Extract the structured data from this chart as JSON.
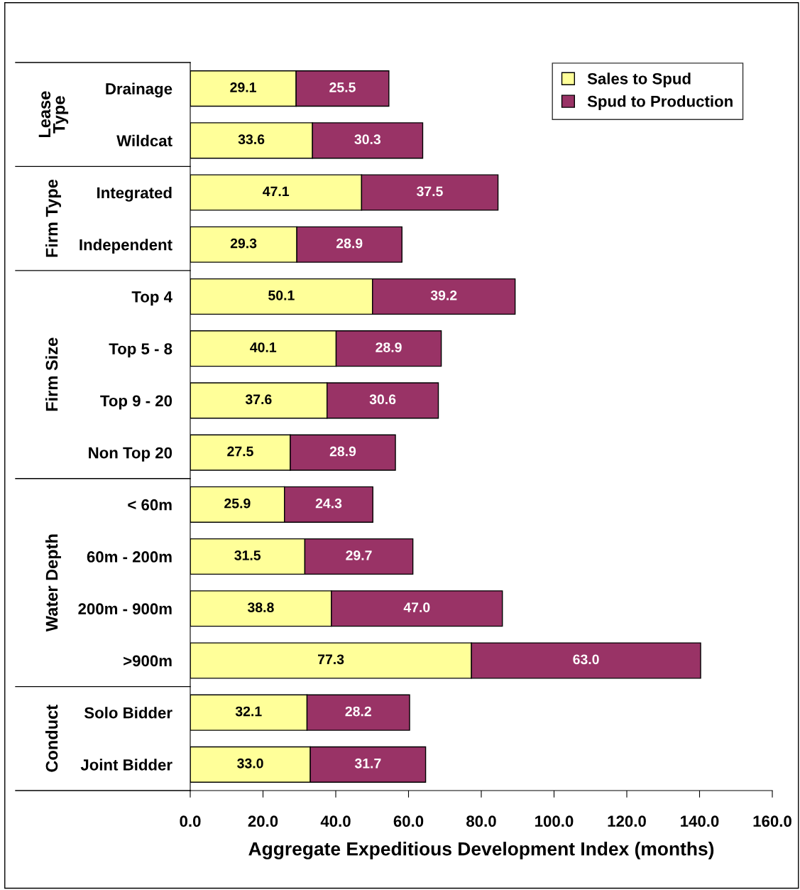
{
  "chart_data": {
    "type": "bar",
    "orientation": "horizontal",
    "stacked": true,
    "xlabel": "Aggregate Expeditious Development Index (months)",
    "categories": [
      "Drainage",
      "Wildcat",
      "Integrated",
      "Independent",
      "Top 4",
      "Top 5 - 8",
      "Top 9 - 20",
      "Non Top 20",
      "< 60m",
      "60m - 200m",
      "200m - 900m",
      ">900m",
      "Solo Bidder",
      "Joint Bidder"
    ],
    "series": [
      {
        "name": "Sales to Spud",
        "color": "#ffff99",
        "values": [
          29.1,
          33.6,
          47.1,
          29.3,
          50.1,
          40.1,
          37.6,
          27.5,
          25.9,
          31.5,
          38.8,
          77.3,
          32.1,
          33.0
        ],
        "value_labels": [
          "29.1",
          "33.6",
          "47.1",
          "29.3",
          "50.1",
          "40.1",
          "37.6",
          "27.5",
          "25.9",
          "31.5",
          "38.8",
          "77.3",
          "32.1",
          "33.0"
        ]
      },
      {
        "name": "Spud to Production",
        "color": "#993366",
        "values": [
          25.5,
          30.3,
          37.5,
          28.9,
          39.2,
          28.9,
          30.6,
          28.9,
          24.3,
          29.7,
          47.0,
          63.0,
          28.2,
          31.7
        ],
        "value_labels": [
          "25.5",
          "30.3",
          "37.5",
          "28.9",
          "39.2",
          "28.9",
          "30.6",
          "28.9",
          "24.3",
          "29.7",
          "47.0",
          "63.0",
          "28.2",
          "31.7"
        ]
      }
    ],
    "xlim": [
      0,
      160
    ],
    "xticks": [
      {
        "value": 0,
        "label": "0.0"
      },
      {
        "value": 20,
        "label": "20.0"
      },
      {
        "value": 40,
        "label": "40.0"
      },
      {
        "value": 60,
        "label": "60.0"
      },
      {
        "value": 80,
        "label": "80.0"
      },
      {
        "value": 100,
        "label": "100.0"
      },
      {
        "value": 120,
        "label": "120.0"
      },
      {
        "value": 140,
        "label": "140.0"
      },
      {
        "value": 160,
        "label": "160.0"
      }
    ],
    "annotations": [
      "Lease\nType",
      "Firm Type",
      "Firm Size",
      "Water Depth",
      "Conduct"
    ],
    "legend": "top right",
    "grid": false
  }
}
